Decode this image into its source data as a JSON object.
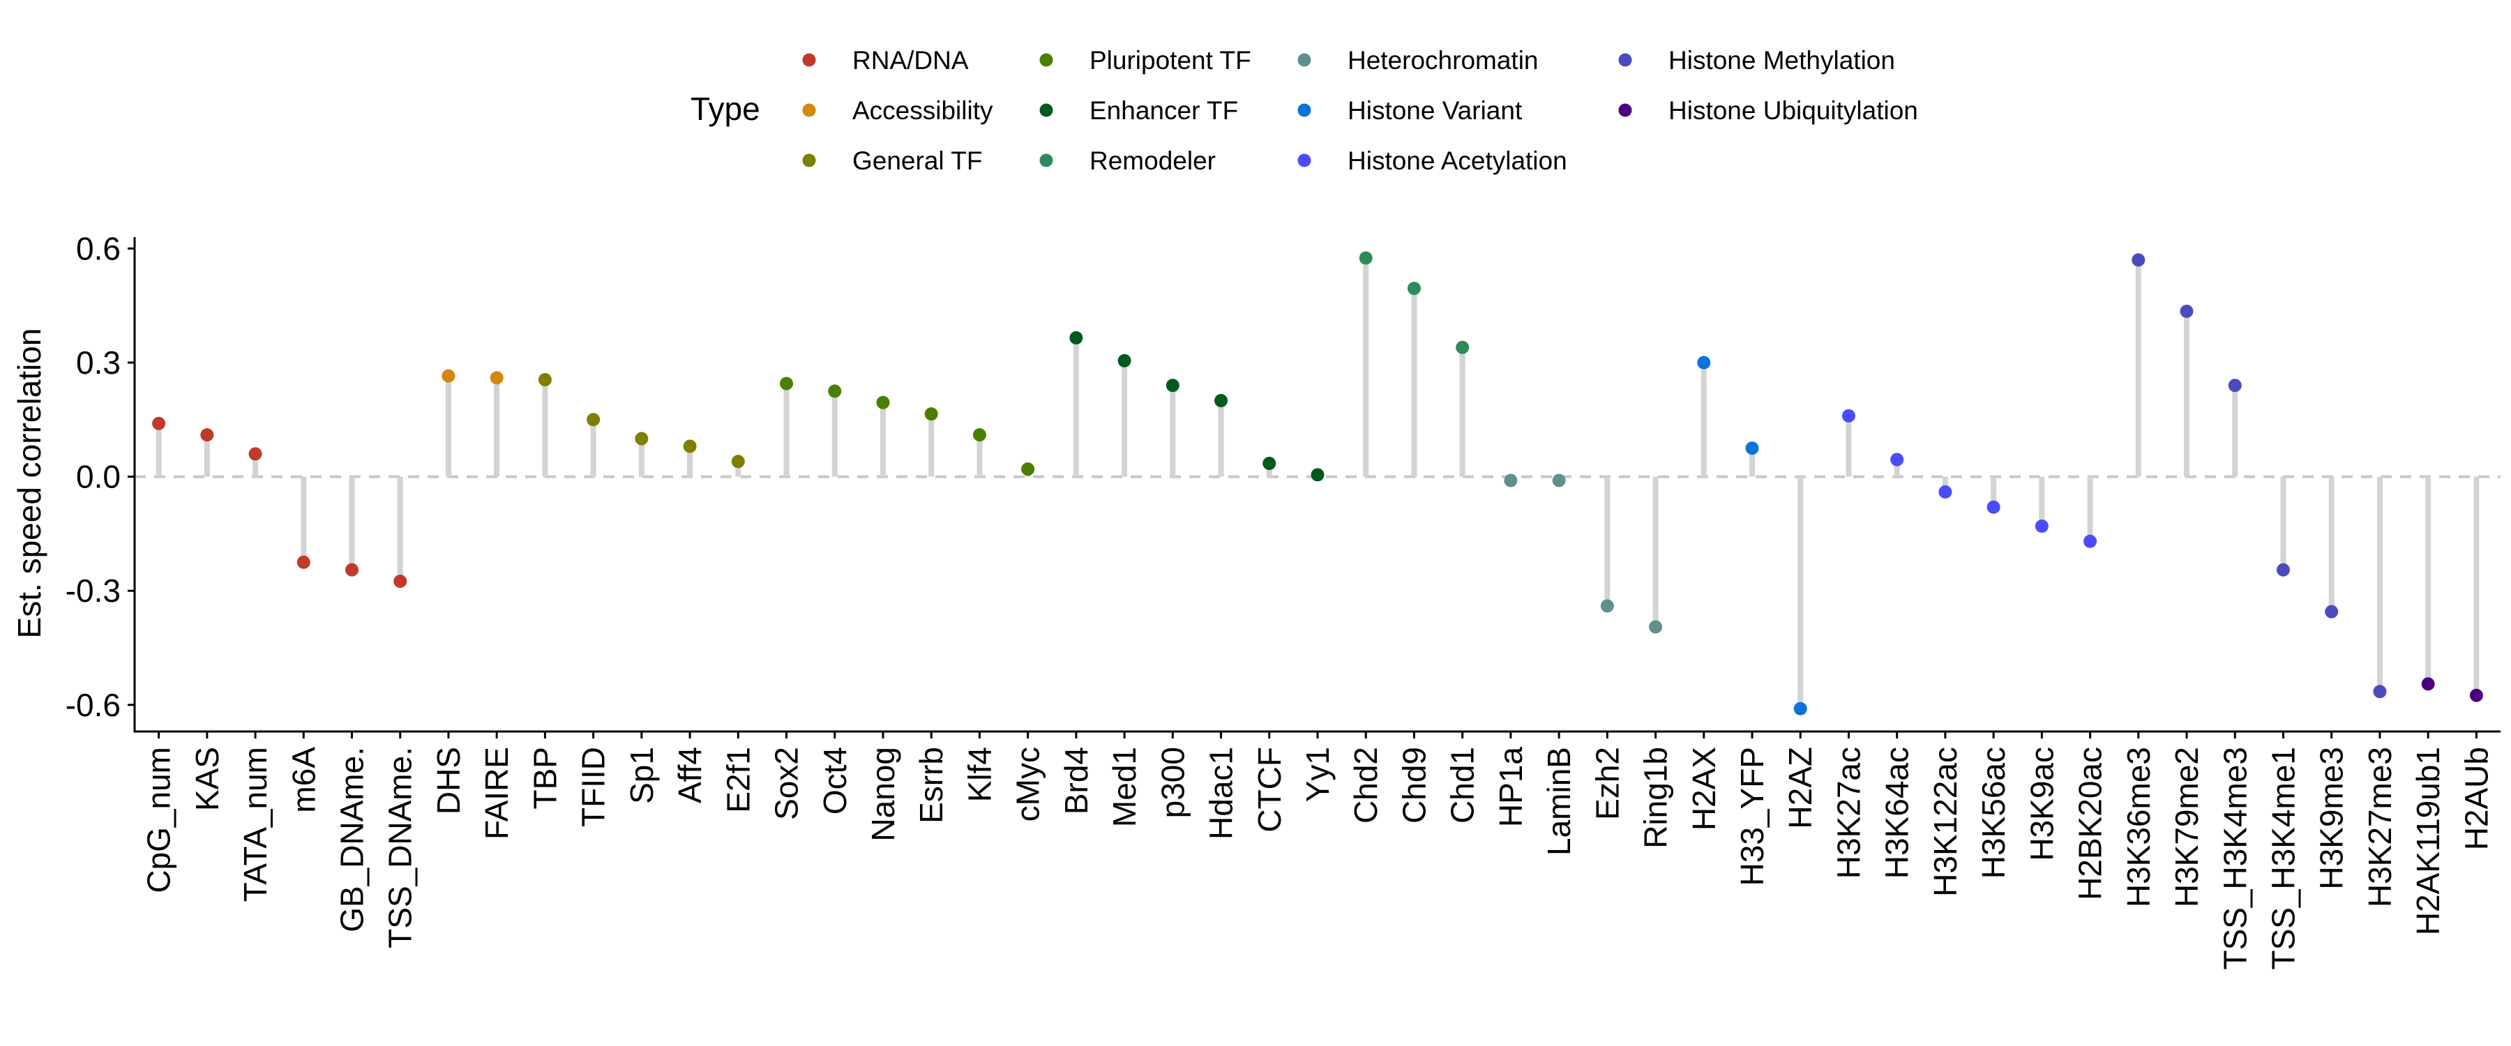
{
  "chart_data": {
    "type": "lollipop",
    "ylabel": "Est. speed correlation",
    "xlabel": "",
    "ylim": [
      -0.67,
      0.63
    ],
    "yticks": [
      -0.6,
      -0.3,
      0.0,
      0.3,
      0.6
    ],
    "ytick_labels": [
      "-0.6",
      "-0.3",
      "0.0",
      "0.3",
      "0.6"
    ],
    "reference_line": 0.0,
    "grid": false,
    "legend": {
      "title": "Type",
      "placement": "top",
      "entries": [
        {
          "name": "RNA/DNA",
          "color": "#C0392B"
        },
        {
          "name": "Accessibility",
          "color": "#D4880A"
        },
        {
          "name": "General TF",
          "color": "#7F7F00"
        },
        {
          "name": "Pluripotent TF",
          "color": "#4A7F00"
        },
        {
          "name": "Enhancer TF",
          "color": "#005A1E"
        },
        {
          "name": "Remodeler",
          "color": "#2E8B57"
        },
        {
          "name": "Heterochromatin",
          "color": "#5F8F8F"
        },
        {
          "name": "Histone Variant",
          "color": "#0A74DA"
        },
        {
          "name": "Histone Acetylation",
          "color": "#4B4BFF"
        },
        {
          "name": "Histone Methylation",
          "color": "#4B4BBF"
        },
        {
          "name": "Histone Ubiquitylation",
          "color": "#4B0082"
        }
      ]
    },
    "points": [
      {
        "label": "CpG_num",
        "value": 0.14,
        "type": "RNA/DNA"
      },
      {
        "label": "KAS",
        "value": 0.11,
        "type": "RNA/DNA"
      },
      {
        "label": "TATA_num",
        "value": 0.06,
        "type": "RNA/DNA"
      },
      {
        "label": "m6A",
        "value": -0.225,
        "type": "RNA/DNA"
      },
      {
        "label": "GB_DNAme.",
        "value": -0.245,
        "type": "RNA/DNA"
      },
      {
        "label": "TSS_DNAme.",
        "value": -0.275,
        "type": "RNA/DNA"
      },
      {
        "label": "DHS",
        "value": 0.265,
        "type": "Accessibility"
      },
      {
        "label": "FAIRE",
        "value": 0.26,
        "type": "Accessibility"
      },
      {
        "label": "TBP",
        "value": 0.255,
        "type": "General TF"
      },
      {
        "label": "TFIID",
        "value": 0.15,
        "type": "General TF"
      },
      {
        "label": "Sp1",
        "value": 0.1,
        "type": "General TF"
      },
      {
        "label": "Aff4",
        "value": 0.08,
        "type": "General TF"
      },
      {
        "label": "E2f1",
        "value": 0.04,
        "type": "General TF"
      },
      {
        "label": "Sox2",
        "value": 0.245,
        "type": "Pluripotent TF"
      },
      {
        "label": "Oct4",
        "value": 0.225,
        "type": "Pluripotent TF"
      },
      {
        "label": "Nanog",
        "value": 0.195,
        "type": "Pluripotent TF"
      },
      {
        "label": "Esrrb",
        "value": 0.165,
        "type": "Pluripotent TF"
      },
      {
        "label": "Klf4",
        "value": 0.11,
        "type": "Pluripotent TF"
      },
      {
        "label": "cMyc",
        "value": 0.02,
        "type": "Pluripotent TF"
      },
      {
        "label": "Brd4",
        "value": 0.365,
        "type": "Enhancer TF"
      },
      {
        "label": "Med1",
        "value": 0.305,
        "type": "Enhancer TF"
      },
      {
        "label": "p300",
        "value": 0.24,
        "type": "Enhancer TF"
      },
      {
        "label": "Hdac1",
        "value": 0.2,
        "type": "Enhancer TF"
      },
      {
        "label": "CTCF",
        "value": 0.035,
        "type": "Enhancer TF"
      },
      {
        "label": "Yy1",
        "value": 0.005,
        "type": "Enhancer TF"
      },
      {
        "label": "Chd2",
        "value": 0.575,
        "type": "Remodeler"
      },
      {
        "label": "Chd9",
        "value": 0.495,
        "type": "Remodeler"
      },
      {
        "label": "Chd1",
        "value": 0.34,
        "type": "Remodeler"
      },
      {
        "label": "HP1a",
        "value": -0.01,
        "type": "Heterochromatin"
      },
      {
        "label": "LaminB",
        "value": -0.01,
        "type": "Heterochromatin"
      },
      {
        "label": "Ezh2",
        "value": -0.34,
        "type": "Heterochromatin"
      },
      {
        "label": "Ring1b",
        "value": -0.395,
        "type": "Heterochromatin"
      },
      {
        "label": "H2AX",
        "value": 0.3,
        "type": "Histone Variant"
      },
      {
        "label": "H33_YFP",
        "value": 0.075,
        "type": "Histone Variant"
      },
      {
        "label": "H2AZ",
        "value": -0.61,
        "type": "Histone Variant"
      },
      {
        "label": "H3K27ac",
        "value": 0.16,
        "type": "Histone Acetylation"
      },
      {
        "label": "H3K64ac",
        "value": 0.045,
        "type": "Histone Acetylation"
      },
      {
        "label": "H3K122ac",
        "value": -0.04,
        "type": "Histone Acetylation"
      },
      {
        "label": "H3K56ac",
        "value": -0.08,
        "type": "Histone Acetylation"
      },
      {
        "label": "H3K9ac",
        "value": -0.13,
        "type": "Histone Acetylation"
      },
      {
        "label": "H2BK20ac",
        "value": -0.17,
        "type": "Histone Acetylation"
      },
      {
        "label": "H3K36me3",
        "value": 0.57,
        "type": "Histone Methylation"
      },
      {
        "label": "H3K79me2",
        "value": 0.435,
        "type": "Histone Methylation"
      },
      {
        "label": "TSS_H3K4me3",
        "value": 0.24,
        "type": "Histone Methylation"
      },
      {
        "label": "TSS_H3K4me1",
        "value": -0.245,
        "type": "Histone Methylation"
      },
      {
        "label": "H3K9me3",
        "value": -0.355,
        "type": "Histone Methylation"
      },
      {
        "label": "H3K27me3",
        "value": -0.565,
        "type": "Histone Methylation"
      },
      {
        "label": "H2AK119ub1",
        "value": -0.545,
        "type": "Histone Ubiquitylation"
      },
      {
        "label": "H2AUb",
        "value": -0.575,
        "type": "Histone Ubiquitylation"
      }
    ]
  }
}
